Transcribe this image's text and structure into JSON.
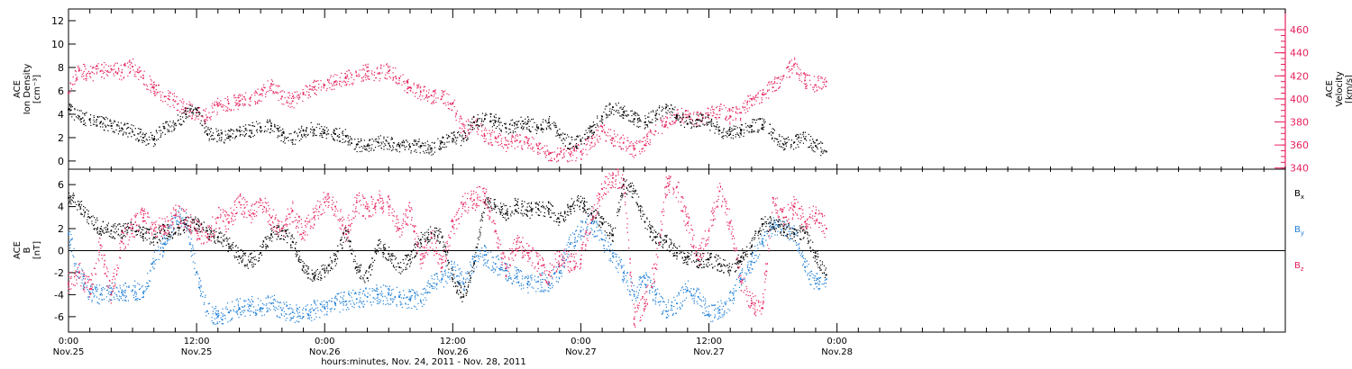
{
  "x_axis": {
    "range": [
      0,
      114
    ],
    "major_ticks": [
      {
        "t": 0,
        "time": "0:00",
        "date": "Nov.25"
      },
      {
        "t": 12,
        "time": "12:00",
        "date": "Nov.25"
      },
      {
        "t": 24,
        "time": "0:00",
        "date": "Nov.26"
      },
      {
        "t": 36,
        "time": "12:00",
        "date": "Nov.26"
      },
      {
        "t": 48,
        "time": "0:00",
        "date": "Nov.27"
      },
      {
        "t": 60,
        "time": "12:00",
        "date": "Nov.27"
      },
      {
        "t": 72,
        "time": "0:00",
        "date": "Nov.28"
      }
    ],
    "minor_step_hours": 2,
    "label": "hours:minutes, Nov. 24, 2011 - Nov. 28, 2011"
  },
  "colors": {
    "black": "#000000",
    "pink": "#e6215c",
    "blue": "#1f7fd6"
  },
  "chart_data": [
    {
      "type": "scatter",
      "left_ylabel_lines": [
        "ACE",
        "Ion Density",
        "[cm⁻³]"
      ],
      "right_ylabel_lines": [
        "ACE",
        "Velocity",
        "[km/s]"
      ],
      "ylim_left": [
        -0.7,
        13.0
      ],
      "yticks_left": [
        0,
        2,
        4,
        6,
        8,
        10,
        12
      ],
      "ylim_right": [
        339,
        478
      ],
      "yticks_right": [
        340,
        360,
        380,
        400,
        420,
        440,
        460
      ],
      "grid": false,
      "series": [
        {
          "name": "",
          "axis": "left",
          "color_key": "black",
          "x": [
            0,
            1,
            2,
            3,
            4,
            5,
            6,
            7,
            8,
            9,
            10,
            11,
            12,
            13,
            14,
            15,
            16,
            17,
            18,
            19,
            20,
            21,
            22,
            23,
            24,
            25,
            26,
            27,
            28,
            29,
            30,
            31,
            32,
            33,
            34,
            35,
            36,
            37,
            38,
            39,
            40,
            41,
            42,
            43,
            44,
            45,
            46,
            47,
            48,
            49,
            50,
            51,
            52,
            53,
            54,
            55,
            56,
            57,
            58,
            59,
            60,
            61,
            62,
            63,
            64,
            65,
            66,
            67,
            68,
            69,
            70,
            71
          ],
          "y": [
            4.4,
            3.8,
            3.5,
            3.3,
            3.0,
            2.8,
            2.5,
            2.0,
            1.8,
            2.8,
            3.2,
            4.0,
            4.4,
            2.3,
            2.2,
            2.1,
            2.6,
            2.6,
            2.9,
            3.0,
            2.2,
            1.8,
            2.6,
            2.7,
            2.4,
            2.3,
            2.1,
            1.4,
            1.3,
            1.6,
            1.5,
            1.3,
            1.2,
            1.3,
            1.1,
            1.6,
            1.9,
            1.9,
            3.3,
            3.6,
            3.4,
            2.8,
            3.1,
            3.2,
            2.8,
            3.3,
            2.2,
            1.5,
            1.7,
            2.6,
            3.8,
            4.6,
            4.2,
            3.6,
            3.3,
            3.9,
            4.6,
            3.9,
            3.2,
            3.5,
            3.3,
            2.6,
            2.3,
            2.6,
            3.0,
            3.1,
            2.4,
            1.4,
            1.6,
            1.9,
            1.3,
            0.8
          ]
        },
        {
          "name": "",
          "axis": "right",
          "color_key": "pink",
          "x": [
            0,
            1,
            2,
            3,
            4,
            5,
            6,
            7,
            8,
            9,
            10,
            11,
            12,
            13,
            14,
            15,
            16,
            17,
            18,
            19,
            20,
            21,
            22,
            23,
            24,
            25,
            26,
            27,
            28,
            29,
            30,
            31,
            32,
            33,
            34,
            35,
            36,
            37,
            38,
            39,
            40,
            41,
            42,
            43,
            44,
            45,
            46,
            47,
            48,
            49,
            50,
            51,
            52,
            53,
            54,
            55,
            56,
            57,
            58,
            59,
            60,
            61,
            62,
            63,
            64,
            65,
            66,
            67,
            68,
            69,
            70,
            71
          ],
          "y": [
            405,
            425,
            422,
            424,
            426,
            423,
            428,
            418,
            410,
            402,
            398,
            392,
            388,
            384,
            394,
            396,
            398,
            400,
            404,
            413,
            402,
            398,
            404,
            410,
            412,
            415,
            418,
            420,
            424,
            422,
            424,
            418,
            410,
            406,
            403,
            402,
            396,
            372,
            380,
            368,
            366,
            360,
            364,
            362,
            357,
            352,
            352,
            352,
            354,
            362,
            372,
            366,
            362,
            356,
            360,
            372,
            380,
            386,
            384,
            382,
            386,
            390,
            385,
            388,
            400,
            404,
            410,
            420,
            430,
            416,
            412,
            415
          ]
        }
      ]
    },
    {
      "type": "scatter",
      "left_ylabel_lines": [
        "ACE",
        "B",
        "[nT]"
      ],
      "ylim": [
        -7.4,
        7.4
      ],
      "yticks": [
        -6,
        -4,
        -2,
        0,
        2,
        4,
        6
      ],
      "zero_line": true,
      "grid": false,
      "series": [
        {
          "name": "Bx",
          "color_key": "black",
          "x": [
            0,
            1,
            2,
            3,
            4,
            5,
            6,
            7,
            8,
            9,
            10,
            11,
            12,
            13,
            14,
            15,
            16,
            17,
            18,
            19,
            20,
            21,
            22,
            23,
            24,
            25,
            26,
            27,
            28,
            29,
            30,
            31,
            32,
            33,
            34,
            35,
            36,
            37,
            38,
            39,
            40,
            41,
            42,
            43,
            44,
            45,
            46,
            47,
            48,
            49,
            50,
            51,
            52,
            53,
            54,
            55,
            56,
            57,
            58,
            59,
            60,
            61,
            62,
            63,
            64,
            65,
            66,
            67,
            68,
            69,
            70,
            71
          ],
          "y": [
            4.8,
            4.2,
            3.0,
            2.0,
            1.8,
            1.8,
            2.0,
            1.5,
            1.2,
            1.8,
            1.6,
            2.4,
            2.4,
            1.8,
            1.2,
            0.6,
            -0.5,
            -1.0,
            -0.2,
            1.5,
            1.8,
            0.8,
            -1.4,
            -2.5,
            -1.8,
            -0.8,
            1.8,
            -1.5,
            -2.5,
            0.5,
            -0.3,
            -1.5,
            -0.8,
            1.0,
            1.6,
            1.2,
            -2.6,
            -4.2,
            -1.2,
            4.4,
            4.0,
            3.4,
            4.2,
            3.6,
            3.8,
            3.8,
            2.6,
            4.0,
            4.4,
            3.4,
            2.5,
            1.4,
            6.0,
            5.4,
            2.6,
            1.2,
            0.8,
            -0.2,
            -0.6,
            -0.9,
            -0.8,
            -1.2,
            -1.8,
            -0.6,
            0.4,
            2.4,
            2.4,
            2.0,
            1.5,
            1.6,
            -0.5,
            -2.2
          ]
        },
        {
          "name": "By",
          "color_key": "blue",
          "x": [
            0,
            1,
            2,
            3,
            4,
            5,
            6,
            7,
            8,
            9,
            10,
            11,
            12,
            13,
            14,
            15,
            16,
            17,
            18,
            19,
            20,
            21,
            22,
            23,
            24,
            25,
            26,
            27,
            28,
            29,
            30,
            31,
            32,
            33,
            34,
            35,
            36,
            37,
            38,
            39,
            40,
            41,
            42,
            43,
            44,
            45,
            46,
            47,
            48,
            49,
            50,
            51,
            52,
            53,
            54,
            55,
            56,
            57,
            58,
            59,
            60,
            61,
            62,
            63,
            64,
            65,
            66,
            67,
            68,
            69,
            70,
            71
          ],
          "y": [
            1.5,
            -2.0,
            -3.8,
            -4.0,
            -3.8,
            -3.8,
            -3.6,
            -3.8,
            -1.0,
            0.6,
            3.0,
            3.0,
            -2.0,
            -5.5,
            -6.0,
            -5.6,
            -5.2,
            -5.0,
            -5.2,
            -4.8,
            -5.4,
            -5.6,
            -6.0,
            -5.4,
            -5.2,
            -4.8,
            -4.6,
            -4.4,
            -4.2,
            -4.0,
            -4.0,
            -4.2,
            -4.4,
            -4.6,
            -3.2,
            -2.6,
            -1.5,
            -3.0,
            -1.0,
            -0.4,
            -1.2,
            -1.8,
            -2.4,
            -3.0,
            -2.8,
            -3.0,
            -2.0,
            0.6,
            1.8,
            2.5,
            1.0,
            -0.5,
            -2.0,
            -4.0,
            -2.5,
            -4.0,
            -5.5,
            -4.8,
            -3.6,
            -4.2,
            -5.8,
            -5.4,
            -4.5,
            -2.6,
            -1.0,
            0.8,
            2.2,
            2.0,
            1.6,
            -1.5,
            -3.0,
            -2.6
          ]
        },
        {
          "name": "Bz",
          "color_key": "pink",
          "x": [
            0,
            1,
            2,
            3,
            4,
            5,
            6,
            7,
            8,
            9,
            10,
            11,
            12,
            13,
            14,
            15,
            16,
            17,
            18,
            19,
            20,
            21,
            22,
            23,
            24,
            25,
            26,
            27,
            28,
            29,
            30,
            31,
            32,
            33,
            34,
            35,
            36,
            37,
            38,
            39,
            40,
            41,
            42,
            43,
            44,
            45,
            46,
            47,
            48,
            49,
            50,
            51,
            52,
            53,
            54,
            55,
            56,
            57,
            58,
            59,
            60,
            61,
            62,
            63,
            64,
            65,
            66,
            67,
            68,
            69,
            70,
            71
          ],
          "y": [
            -3.0,
            -2.0,
            -3.5,
            0.5,
            -4.0,
            0.8,
            2.0,
            3.0,
            1.8,
            2.2,
            3.2,
            2.8,
            1.8,
            1.2,
            3.0,
            2.6,
            4.4,
            3.2,
            4.6,
            3.0,
            2.0,
            3.6,
            1.6,
            3.0,
            4.4,
            4.0,
            1.5,
            4.4,
            3.8,
            4.6,
            4.0,
            2.0,
            3.6,
            -0.8,
            1.2,
            -1.5,
            2.2,
            4.2,
            4.6,
            5.2,
            1.8,
            -1.6,
            0.8,
            -0.2,
            -1.2,
            -2.2,
            -0.5,
            -1.0,
            -0.8,
            2.8,
            5.6,
            6.6,
            6.4,
            -6.2,
            -4.8,
            -1.6,
            5.8,
            5.8,
            2.5,
            -0.8,
            1.8,
            5.4,
            2.6,
            -2.8,
            -4.8,
            -5.2,
            4.8,
            3.0,
            4.0,
            2.6,
            3.4,
            2.0
          ]
        }
      ]
    }
  ]
}
